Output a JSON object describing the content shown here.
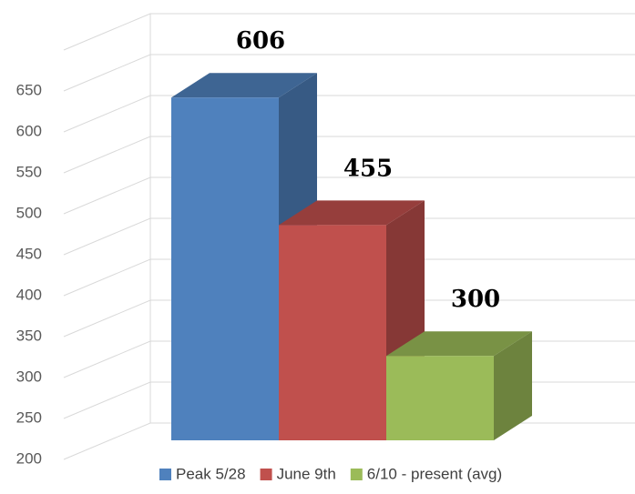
{
  "chart_data": {
    "type": "bar3d",
    "categories": [
      null
    ],
    "series": [
      {
        "name": "Peak 5/28",
        "color": "#4f81bd",
        "values": [
          606
        ]
      },
      {
        "name": "June 9th",
        "color": "#c0504d",
        "values": [
          455
        ]
      },
      {
        "name": "6/10 - present (avg)",
        "color": "#9bbb59",
        "values": [
          300
        ]
      }
    ],
    "ylim": [
      200,
      700
    ],
    "yticks": [
      200,
      250,
      300,
      350,
      400,
      450,
      500,
      550,
      600,
      650
    ],
    "grid": true,
    "legend": "bottom"
  }
}
